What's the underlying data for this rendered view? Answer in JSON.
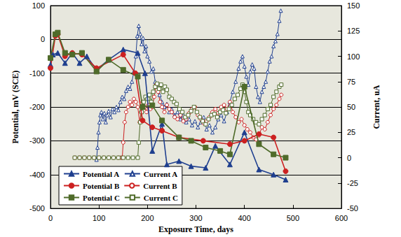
{
  "chart_data": {
    "type": "line",
    "x_label": "Exposure Time, days",
    "y_label": "Potential, mV (SCE)",
    "y2_label": "Current, uA",
    "xlim": [
      0,
      600
    ],
    "xticks": [
      0,
      100,
      200,
      300,
      400,
      500,
      600
    ],
    "ylim": [
      -500,
      100
    ],
    "yticks": [
      -500,
      -400,
      -300,
      -200,
      -100,
      0,
      100
    ],
    "y2lim": [
      -50,
      150
    ],
    "y2ticks": [
      -50,
      -25,
      0,
      25,
      50,
      75,
      100,
      125,
      150
    ],
    "grid": true,
    "legend": "lower left",
    "series": [
      {
        "name": "Potential A",
        "color": "#1f3f8f",
        "marker": "triangle",
        "line_style": "solid",
        "x": [
          0,
          5,
          15,
          30,
          45,
          60,
          75,
          95,
          120,
          150,
          180,
          195,
          210,
          230,
          240,
          265,
          290,
          320,
          340,
          370,
          400,
          430,
          460,
          485
        ],
        "values": [
          -75,
          -45,
          -40,
          -70,
          -40,
          -70,
          -50,
          -90,
          -60,
          -30,
          -40,
          -100,
          -330,
          -250,
          -370,
          -360,
          -375,
          -380,
          -315,
          -370,
          -275,
          -385,
          -400,
          -415
        ]
      },
      {
        "name": "Current A",
        "color": "#1f3f8f",
        "marker": "open-triangle",
        "line_style": "solid",
        "axis": "y2",
        "x": [
          95,
          97,
          99,
          101,
          103,
          105,
          108,
          111,
          114,
          117,
          120,
          124,
          128,
          132,
          136,
          140,
          144,
          148,
          152,
          156,
          160,
          164,
          168,
          172,
          176,
          179,
          182,
          185,
          188,
          191,
          194,
          197,
          200,
          204,
          208,
          212,
          216,
          220,
          225,
          230,
          235,
          240,
          245,
          250,
          256,
          262,
          268,
          274,
          280,
          286,
          292,
          298,
          304,
          310,
          316,
          322,
          328,
          334,
          340,
          346,
          352,
          358,
          364,
          370,
          376,
          382,
          388,
          392,
          396,
          400,
          404,
          408,
          412,
          416,
          420,
          424,
          428,
          432,
          436,
          440,
          444,
          448,
          452,
          456,
          460,
          464,
          468,
          472,
          475
        ],
        "values": [
          -2,
          10,
          25,
          35,
          42,
          45,
          38,
          44,
          35,
          42,
          46,
          40,
          48,
          45,
          50,
          47,
          55,
          60,
          58,
          66,
          70,
          68,
          75,
          85,
          100,
          120,
          130,
          122,
          112,
          118,
          105,
          110,
          100,
          95,
          85,
          88,
          75,
          70,
          62,
          55,
          50,
          53,
          45,
          48,
          42,
          45,
          38,
          42,
          35,
          38,
          32,
          36,
          30,
          35,
          40,
          28,
          32,
          25,
          30,
          38,
          42,
          36,
          45,
          55,
          65,
          75,
          88,
          95,
          100,
          90,
          80,
          72,
          85,
          92,
          88,
          70,
          60,
          55,
          65,
          70,
          75,
          85,
          95,
          100,
          110,
          115,
          122,
          135,
          145
        ]
      },
      {
        "name": "Potential B",
        "color": "#cc2020",
        "marker": "circle",
        "line_style": "solid",
        "x": [
          0,
          10,
          15,
          30,
          45,
          65,
          95,
          150,
          175,
          190,
          210,
          230,
          265,
          315,
          370,
          400,
          430,
          460,
          485
        ],
        "values": [
          -85,
          10,
          15,
          -50,
          -40,
          -45,
          -85,
          -45,
          -100,
          -240,
          -260,
          -270,
          -290,
          -300,
          -310,
          -300,
          -280,
          -290,
          -390
        ]
      },
      {
        "name": "Current B",
        "color": "#cc2020",
        "marker": "open-circle",
        "line_style": "solid",
        "axis": "y2",
        "x": [
          50,
          60,
          70,
          80,
          90,
          100,
          110,
          120,
          130,
          140,
          145,
          148,
          150,
          153,
          156,
          160,
          164,
          168,
          172,
          176,
          180,
          184,
          187,
          190,
          194,
          198,
          202,
          206,
          210,
          214,
          218,
          222,
          226,
          230,
          235,
          240,
          245,
          250,
          256,
          262,
          268,
          274,
          280,
          286,
          292,
          298,
          304,
          310,
          316,
          322,
          328,
          334,
          340,
          346,
          352,
          358,
          364,
          370,
          376,
          382,
          388,
          394,
          400,
          406,
          412,
          418,
          424,
          430,
          436,
          442,
          448,
          454,
          460,
          466,
          472,
          476
        ],
        "values": [
          0,
          0,
          0,
          0,
          0,
          0,
          0,
          0,
          0,
          0,
          0,
          0,
          15,
          35,
          45,
          50,
          55,
          52,
          58,
          55,
          50,
          35,
          45,
          55,
          50,
          45,
          52,
          48,
          50,
          60,
          72,
          65,
          55,
          50,
          45,
          52,
          48,
          45,
          40,
          38,
          42,
          36,
          38,
          44,
          48,
          50,
          42,
          38,
          34,
          36,
          40,
          45,
          48,
          44,
          50,
          52,
          48,
          55,
          45,
          40,
          35,
          38,
          32,
          28,
          25,
          20,
          18,
          22,
          30,
          28,
          35,
          42,
          48,
          52,
          58,
          62
        ]
      },
      {
        "name": "Potential C",
        "color": "#4f6b2a",
        "marker": "square",
        "line_style": "solid",
        "x": [
          0,
          10,
          15,
          30,
          45,
          65,
          95,
          120,
          150,
          180,
          190,
          210,
          230,
          265,
          290,
          320,
          350,
          370,
          400,
          430,
          460,
          485
        ],
        "values": [
          -55,
          15,
          20,
          -40,
          -45,
          -40,
          -95,
          -60,
          -90,
          -110,
          -200,
          -195,
          -240,
          -290,
          -300,
          -320,
          -330,
          -340,
          -140,
          -310,
          -340,
          -350
        ]
      },
      {
        "name": "Current C",
        "color": "#4f6b2a",
        "marker": "open-square",
        "line_style": "solid",
        "axis": "y2",
        "x": [
          50,
          60,
          70,
          80,
          90,
          100,
          110,
          120,
          130,
          140,
          150,
          160,
          170,
          180,
          182,
          185,
          188,
          192,
          196,
          200,
          204,
          208,
          212,
          216,
          220,
          224,
          228,
          232,
          236,
          240,
          245,
          250,
          255,
          260,
          266,
          272,
          278,
          284,
          290,
          296,
          302,
          308,
          314,
          320,
          326,
          332,
          338,
          344,
          350,
          356,
          362,
          368,
          374,
          380,
          386,
          392,
          396,
          400,
          404,
          408,
          412,
          418,
          424,
          430,
          436,
          442,
          448,
          454,
          460,
          466,
          472,
          476
        ],
        "values": [
          0,
          0,
          0,
          0,
          0,
          0,
          0,
          0,
          0,
          0,
          0,
          0,
          0,
          0,
          15,
          35,
          45,
          55,
          60,
          58,
          62,
          55,
          65,
          70,
          73,
          68,
          72,
          65,
          70,
          67,
          60,
          58,
          55,
          53,
          48,
          45,
          40,
          42,
          46,
          50,
          45,
          40,
          36,
          33,
          38,
          42,
          43,
          40,
          45,
          47,
          44,
          48,
          52,
          58,
          62,
          68,
          72,
          65,
          55,
          45,
          42,
          38,
          35,
          33,
          38,
          42,
          48,
          52,
          60,
          65,
          70,
          72
        ]
      }
    ]
  }
}
